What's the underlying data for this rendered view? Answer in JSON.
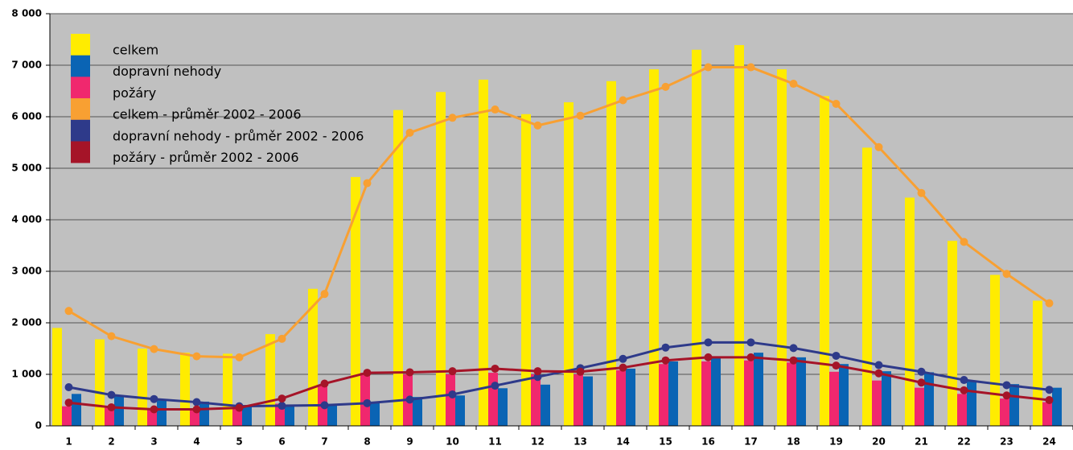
{
  "chart_data": {
    "type": "bar_line",
    "categories": [
      "1",
      "2",
      "3",
      "4",
      "5",
      "6",
      "7",
      "8",
      "9",
      "10",
      "11",
      "12",
      "13",
      "14",
      "15",
      "16",
      "17",
      "18",
      "19",
      "20",
      "21",
      "22",
      "23",
      "24"
    ],
    "series": [
      {
        "name": "celkem",
        "color": "#ffec00",
        "kind": "bar",
        "values": [
          1900,
          1680,
          1500,
          1420,
          1400,
          1780,
          2660,
          4830,
          6130,
          6480,
          6720,
          6050,
          6280,
          6690,
          6920,
          7300,
          7390,
          6920,
          6400,
          5400,
          4430,
          3590,
          2930,
          2430
        ]
      },
      {
        "name": "dopravní nehody",
        "color": "#0a64b4",
        "kind": "bar",
        "values": [
          620,
          580,
          520,
          470,
          400,
          380,
          420,
          470,
          560,
          590,
          730,
          800,
          960,
          1110,
          1250,
          1330,
          1420,
          1330,
          1200,
          1060,
          1040,
          870,
          810,
          740
        ]
      },
      {
        "name": "požáry",
        "color": "#f0286e",
        "kind": "bar",
        "values": [
          380,
          350,
          330,
          320,
          340,
          430,
          800,
          1030,
          1000,
          1000,
          1030,
          1000,
          1000,
          1080,
          1200,
          1250,
          1270,
          1230,
          1050,
          880,
          740,
          620,
          530,
          460
        ]
      },
      {
        "name": "celkem - průměr 2002 - 2006",
        "color": "#f8a032",
        "kind": "line",
        "values": [
          2230,
          1740,
          1490,
          1350,
          1330,
          1690,
          2560,
          4710,
          5690,
          5980,
          6140,
          5830,
          6020,
          6320,
          6580,
          6960,
          6960,
          6640,
          6250,
          5410,
          4520,
          3570,
          2950,
          2380
        ]
      },
      {
        "name": "dopravní nehody - průměr 2002 - 2006",
        "color": "#2e3a8a",
        "kind": "line",
        "values": [
          750,
          600,
          520,
          460,
          380,
          390,
          400,
          440,
          510,
          610,
          780,
          950,
          1120,
          1300,
          1520,
          1620,
          1620,
          1510,
          1360,
          1180,
          1050,
          890,
          790,
          700
        ]
      },
      {
        "name": "požáry - průměr 2002 - 2006",
        "color": "#a51428",
        "kind": "line",
        "values": [
          450,
          360,
          320,
          320,
          350,
          530,
          820,
          1030,
          1040,
          1060,
          1110,
          1060,
          1050,
          1130,
          1270,
          1330,
          1330,
          1270,
          1170,
          1020,
          840,
          690,
          590,
          500
        ]
      }
    ],
    "ylim": [
      0,
      8000
    ],
    "yticks": [
      0,
      {
        "value": 1000,
        "label": "1 000"
      },
      {
        "value": 2000,
        "label": "2 000"
      },
      {
        "value": 3000,
        "label": "3 000"
      },
      {
        "value": 4000,
        "label": "4 000"
      },
      {
        "value": 5000,
        "label": "5 000"
      },
      {
        "value": 6000,
        "label": "6 000"
      },
      {
        "value": 7000,
        "label": "7 000"
      },
      {
        "value": 8000,
        "label": "8 000"
      }
    ],
    "grid": true,
    "legend": "top-left",
    "background": "#c0c0c0"
  }
}
